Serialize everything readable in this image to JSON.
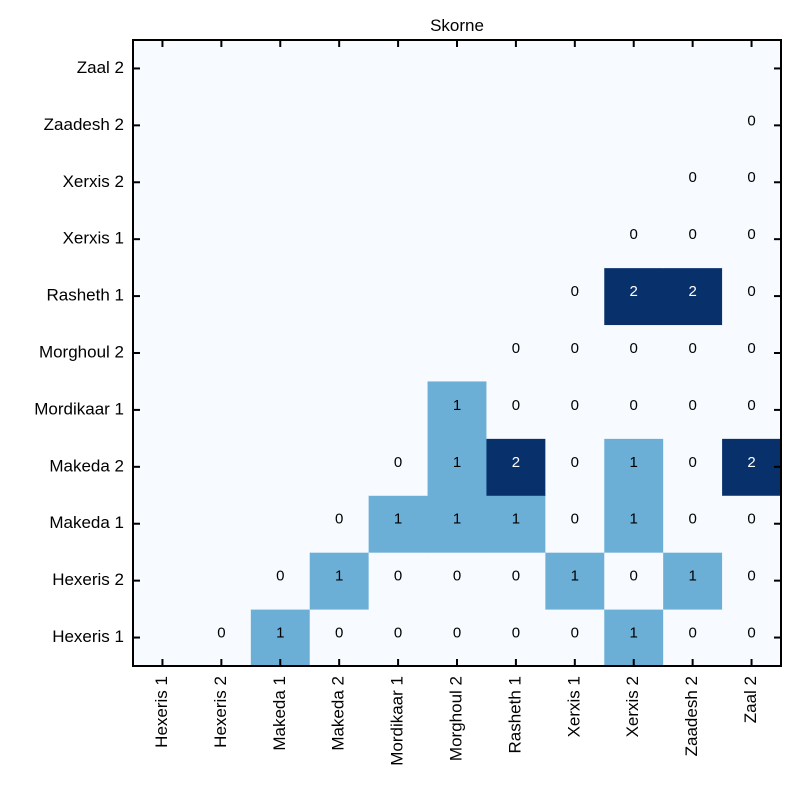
{
  "chart_data": {
    "type": "heatmap",
    "title": "Skorne",
    "x_labels": [
      "Hexeris 1",
      "Hexeris 2",
      "Makeda 1",
      "Makeda 2",
      "Mordikaar 1",
      "Morghoul 2",
      "Rasheth 1",
      "Xerxis 1",
      "Xerxis 2",
      "Zaadesh 2",
      "Zaal 2"
    ],
    "y_labels": [
      "Hexeris 1",
      "Hexeris 2",
      "Makeda 1",
      "Makeda 2",
      "Mordikaar 1",
      "Morghoul 2",
      "Rasheth 1",
      "Xerxis 1",
      "Xerxis 2",
      "Zaadesh 2",
      "Zaal 2"
    ],
    "values": [
      [
        null,
        0,
        1,
        0,
        0,
        0,
        0,
        0,
        1,
        0,
        0
      ],
      [
        null,
        null,
        0,
        1,
        0,
        0,
        0,
        1,
        0,
        1,
        0
      ],
      [
        null,
        null,
        null,
        0,
        1,
        1,
        1,
        0,
        1,
        0,
        0
      ],
      [
        null,
        null,
        null,
        null,
        0,
        1,
        2,
        0,
        1,
        0,
        2
      ],
      [
        null,
        null,
        null,
        null,
        null,
        1,
        0,
        0,
        0,
        0,
        0
      ],
      [
        null,
        null,
        null,
        null,
        null,
        null,
        0,
        0,
        0,
        0,
        0
      ],
      [
        null,
        null,
        null,
        null,
        null,
        null,
        null,
        0,
        2,
        2,
        0
      ],
      [
        null,
        null,
        null,
        null,
        null,
        null,
        null,
        null,
        0,
        0,
        0
      ],
      [
        null,
        null,
        null,
        null,
        null,
        null,
        null,
        null,
        null,
        0,
        0
      ],
      [
        null,
        null,
        null,
        null,
        null,
        null,
        null,
        null,
        null,
        null,
        0
      ],
      [
        null,
        null,
        null,
        null,
        null,
        null,
        null,
        null,
        null,
        null,
        null
      ]
    ],
    "colors": {
      "0": "#f7fbff",
      "1": "#6baed6",
      "2": "#08306b",
      "empty": "#f7fbff"
    },
    "label_colors": {
      "light": "#000000",
      "dark": "#ffffff"
    },
    "grid": false
  }
}
